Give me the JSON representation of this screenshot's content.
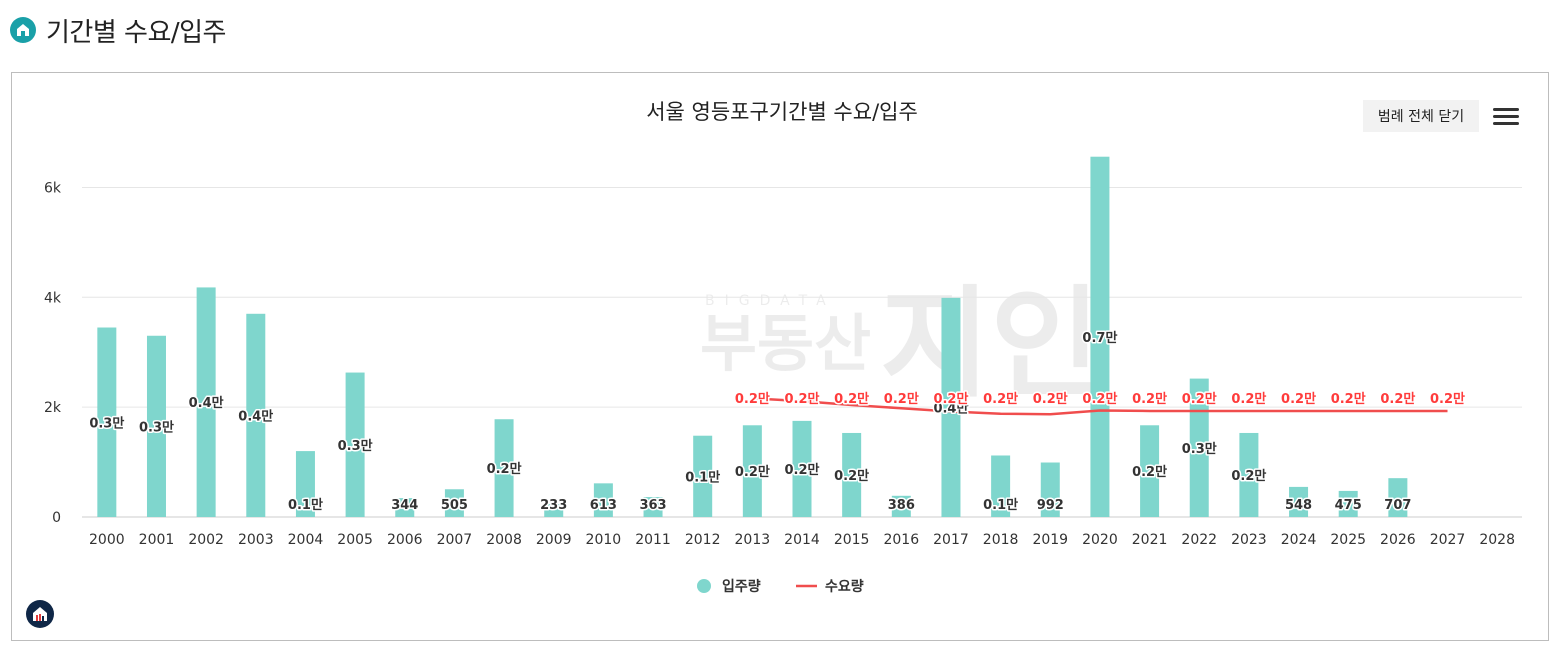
{
  "header": {
    "title": "기간별 수요/입주"
  },
  "toolbar": {
    "legend_toggle_label": "범례 전체 닫기"
  },
  "icons": {
    "header": "home-icon",
    "menu": "menu-icon",
    "corner": "logo-icon"
  },
  "colors": {
    "bar": "#7fd6cd",
    "line": "#f04d4d",
    "line_label": "#ff3b3b",
    "accent": "#1aa0a8",
    "grid": "#e6e6e6"
  },
  "chart_data": {
    "type": "bar",
    "title": "서울 영등포구기간별 수요/입주",
    "xlabel": "",
    "ylabel": "",
    "ylim": [
      0,
      6500
    ],
    "yticks": [
      0,
      2000,
      4000,
      6000
    ],
    "ytick_labels": [
      "0",
      "2k",
      "4k",
      "6k"
    ],
    "grid": true,
    "legend_position": "bottom-center",
    "watermark": "부동산지인",
    "categories": [
      "2000",
      "2001",
      "2002",
      "2003",
      "2004",
      "2005",
      "2006",
      "2007",
      "2008",
      "2009",
      "2010",
      "2011",
      "2012",
      "2013",
      "2014",
      "2015",
      "2016",
      "2017",
      "2018",
      "2019",
      "2020",
      "2021",
      "2022",
      "2023",
      "2024",
      "2025",
      "2026",
      "2027",
      "2028"
    ],
    "series": [
      {
        "name": "입주량",
        "type": "bar",
        "values": [
          3450,
          3300,
          4180,
          3700,
          1200,
          2630,
          344,
          505,
          1780,
          233,
          613,
          363,
          1480,
          1670,
          1750,
          1530,
          386,
          3990,
          1120,
          992,
          6560,
          1670,
          2520,
          1530,
          548,
          475,
          707,
          null,
          null
        ],
        "labels": [
          "0.3만",
          "0.3만",
          "0.4만",
          "0.4만",
          "0.1만",
          "0.3만",
          "344",
          "505",
          "0.2만",
          "233",
          "613",
          "363",
          "0.1만",
          "0.2만",
          "0.2만",
          "0.2만",
          "386",
          "0.4만",
          "0.1만",
          "992",
          "0.7만",
          "0.2만",
          "0.3만",
          "0.2만",
          "548",
          "475",
          "707",
          "",
          ""
        ]
      },
      {
        "name": "수요량",
        "type": "line",
        "values": [
          null,
          null,
          null,
          null,
          null,
          null,
          null,
          null,
          null,
          null,
          null,
          null,
          null,
          2160,
          2110,
          2040,
          1980,
          1920,
          1880,
          1870,
          1940,
          1930,
          1930,
          1930,
          1930,
          1930,
          1930,
          1930,
          null
        ],
        "labels": [
          "",
          "",
          "",
          "",
          "",
          "",
          "",
          "",
          "",
          "",
          "",
          "",
          "",
          "0.2만",
          "0.2만",
          "0.2만",
          "0.2만",
          "0.2만",
          "0.2만",
          "0.2만",
          "0.2만",
          "0.2만",
          "0.2만",
          "0.2만",
          "0.2만",
          "0.2만",
          "0.2만",
          "0.2만",
          ""
        ]
      }
    ]
  }
}
